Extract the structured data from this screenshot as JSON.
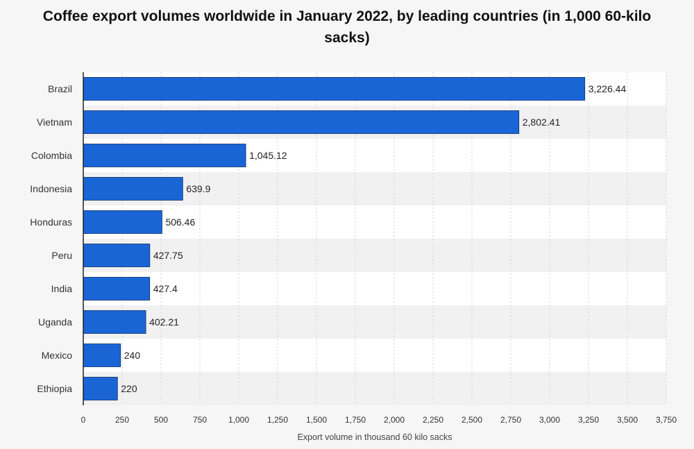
{
  "chart_data": {
    "type": "bar",
    "orientation": "horizontal",
    "title": "Coffee export volumes worldwide in January 2022, by leading countries (in 1,000 60-kilo sacks)",
    "xlabel": "Export volume in thousand 60 kilo sacks",
    "ylabel": "",
    "categories": [
      "Brazil",
      "Vietnam",
      "Colombia",
      "Indonesia",
      "Honduras",
      "Peru",
      "India",
      "Uganda",
      "Mexico",
      "Ethiopia"
    ],
    "values": [
      3226.44,
      2802.41,
      1045.12,
      639.9,
      506.46,
      427.75,
      427.4,
      402.21,
      240,
      220
    ],
    "value_labels": [
      "3,226.44",
      "2,802.41",
      "1,045.12",
      "639.9",
      "506.46",
      "427.75",
      "427.4",
      "402.21",
      "240",
      "220"
    ],
    "xlim": [
      0,
      3750
    ],
    "xticks": [
      0,
      250,
      500,
      750,
      1000,
      1250,
      1500,
      1750,
      2000,
      2250,
      2500,
      2750,
      3000,
      3250,
      3500,
      3750
    ],
    "xtick_labels": [
      "0",
      "250",
      "500",
      "750",
      "1,000",
      "1,250",
      "1,500",
      "1,750",
      "2,000",
      "2,250",
      "2,500",
      "2,750",
      "3,000",
      "3,250",
      "3,500",
      "3,750"
    ],
    "grid": true,
    "bar_color": "#1a65d6",
    "bar_edge_color": "#0d2f66"
  }
}
